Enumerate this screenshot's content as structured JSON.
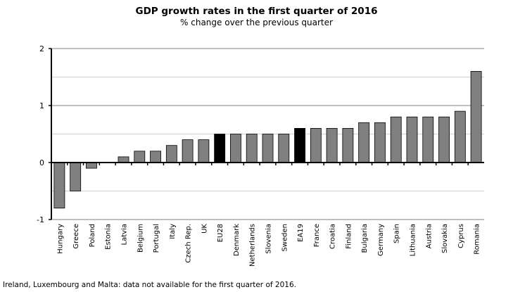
{
  "chart_data": {
    "type": "bar",
    "title": "GDP growth rates in the first quarter of 2016",
    "subtitle": "% change over the previous quarter",
    "categories": [
      "Hungary",
      "Greece",
      "Poland",
      "Estonia",
      "Latvia",
      "Belgium",
      "Portugal",
      "Italy",
      "Czech Rep.",
      "UK",
      "EU28",
      "Denmark",
      "Netherlands",
      "Slovenia",
      "Sweden",
      "EA19",
      "France",
      "Croatia",
      "Finland",
      "Bulgaria",
      "Germany",
      "Spain",
      "Lithuania",
      "Austria",
      "Slovakia",
      "Cyprus",
      "Romania"
    ],
    "values": [
      -0.8,
      -0.5,
      -0.1,
      0,
      0.1,
      0.2,
      0.2,
      0.3,
      0.4,
      0.4,
      0.5,
      0.5,
      0.5,
      0.5,
      0.5,
      0.6,
      0.6,
      0.6,
      0.6,
      0.7,
      0.7,
      0.8,
      0.8,
      0.8,
      0.8,
      0.9,
      1.6
    ],
    "highlight": [
      "EU28",
      "EA19"
    ],
    "colors": {
      "bar": "#808080",
      "highlight": "#000000",
      "grid_major": "#808080",
      "grid_minor": "#d0d0d0"
    },
    "ylim": [
      -1,
      2
    ],
    "yticks": [
      "-1",
      "0",
      "1",
      "2"
    ],
    "grid": true,
    "note": "Ireland, Luxembourg and Malta: data not available for the first quarter of 2016."
  }
}
